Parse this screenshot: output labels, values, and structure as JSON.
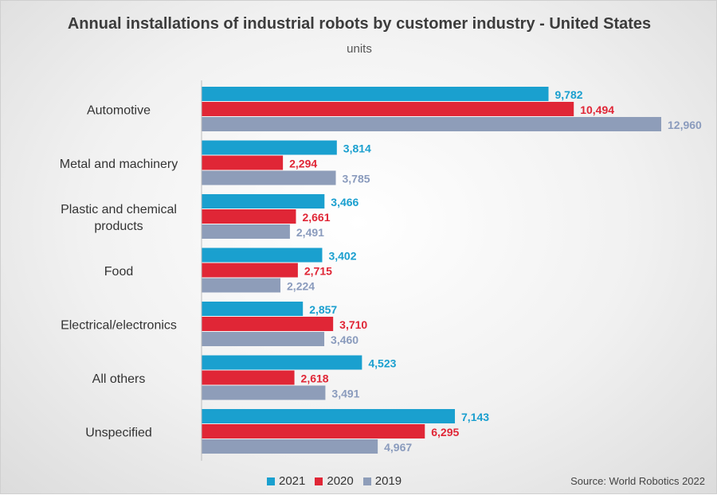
{
  "chart_data": {
    "type": "bar",
    "orientation": "horizontal",
    "title": "Annual installations of industrial robots by customer industry - United States",
    "subtitle": "units",
    "categories": [
      "Automotive",
      "Metal and machinery",
      "Plastic and chemical products",
      "Food",
      "Electrical/electronics",
      "All others",
      "Unspecified"
    ],
    "series": [
      {
        "name": "2021",
        "color": "#1aa0cf",
        "values": [
          9782,
          3814,
          3466,
          3402,
          2857,
          4523,
          7143
        ],
        "labels": [
          "9,782",
          "3,814",
          "3,466",
          "3,402",
          "2,857",
          "4,523",
          "7,143"
        ]
      },
      {
        "name": "2020",
        "color": "#e02636",
        "values": [
          10494,
          2294,
          2661,
          2715,
          3710,
          2618,
          6295
        ],
        "labels": [
          "10,494",
          "2,294",
          "2,661",
          "2,715",
          "3,710",
          "2,618",
          "6,295"
        ]
      },
      {
        "name": "2019",
        "color": "#8e9db9",
        "values": [
          12960,
          3785,
          2491,
          2224,
          3460,
          3491,
          4967
        ],
        "labels": [
          "12,960",
          "3,785",
          "2,491",
          "2,224",
          "3,460",
          "3,491",
          "4,967"
        ]
      }
    ],
    "xlim": [
      0,
      13000
    ],
    "grid": false,
    "legend_position": "bottom",
    "source": "Source: World Robotics 2022"
  }
}
